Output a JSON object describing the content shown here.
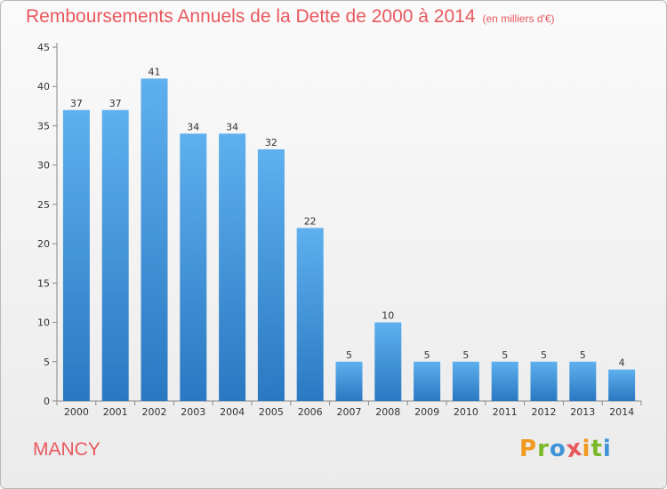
{
  "chart_data": {
    "type": "bar",
    "title": "Remboursements Annuels de la Dette de 2000 à 2014",
    "subtitle": "(en milliers d'€)",
    "categories": [
      "2000",
      "2001",
      "2002",
      "2003",
      "2004",
      "2005",
      "2006",
      "2007",
      "2008",
      "2009",
      "2010",
      "2011",
      "2012",
      "2013",
      "2014"
    ],
    "series": [
      {
        "values": [
          37,
          37,
          41,
          34,
          34,
          32,
          22,
          5,
          10,
          5,
          5,
          5,
          5,
          5,
          4
        ]
      }
    ],
    "ylim": [
      0,
      45
    ],
    "yticks": [
      0,
      5,
      10,
      15,
      20,
      25,
      30,
      35,
      40,
      45
    ],
    "grid": false,
    "bar_color": "#3f93d9",
    "title_color": "#e8585e"
  },
  "footer": {
    "place": "MANCY",
    "logo": {
      "text": "Proxiti",
      "letters": [
        {
          "ch": "P",
          "color": "#f29a1f"
        },
        {
          "ch": "r",
          "color": "#79b928"
        },
        {
          "ch": "o",
          "color": "#3f93d9"
        },
        {
          "ch": "x",
          "color": "#e8585e"
        },
        {
          "ch": "i",
          "color": "#f29a1f"
        },
        {
          "ch": "t",
          "color": "#79b928"
        },
        {
          "ch": "i",
          "color": "#3f93d9"
        }
      ]
    }
  }
}
